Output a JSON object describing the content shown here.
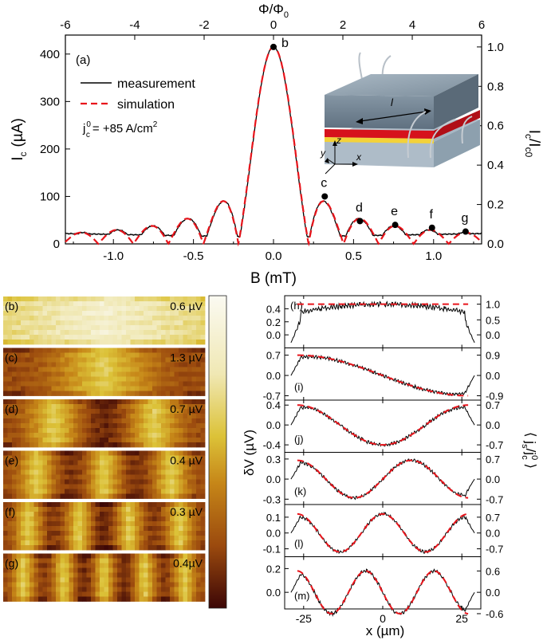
{
  "chart_data": [
    {
      "panel": "(a)",
      "type": "line",
      "xlabel": "B (mT)",
      "x_top_label": "Φ/Φ",
      "x_top_label_sub": "0",
      "ylabel": "I",
      "ylabel_sub": "c",
      "ylabel_unit": "(µA)",
      "y2label": "I",
      "y2label_sub1": "c",
      "y2label_sep": "/I",
      "y2label_sub2": "c0",
      "xlim": [
        -1.3,
        1.3
      ],
      "ylim": [
        0,
        440
      ],
      "x_ticks": [
        "-1.0",
        "-0.5",
        "0.0",
        "0.5",
        "1.0"
      ],
      "x_tick_values": [
        -1.0,
        -0.5,
        0.0,
        0.5,
        1.0
      ],
      "x_top_ticks": [
        "-6",
        "-4",
        "-2",
        "0",
        "2",
        "4",
        "6"
      ],
      "x_top_tick_values": [
        -6,
        -4,
        -2,
        0,
        2,
        4,
        6
      ],
      "y_ticks": [
        "0",
        "100",
        "200",
        "300",
        "400"
      ],
      "y_tick_values": [
        0,
        100,
        200,
        300,
        400
      ],
      "y2_ticks": [
        "0.0",
        "0.2",
        "0.4",
        "0.6",
        "0.8",
        "1.0"
      ],
      "y2_tick_values": [
        0.0,
        0.2,
        0.4,
        0.6,
        0.8,
        1.0
      ],
      "model": {
        "Ic0": 415,
        "B_per_flux": 0.2167,
        "floor": 14
      },
      "legend": [
        {
          "name": "measurement",
          "color": "#000000",
          "style": "solid"
        },
        {
          "name": "simulation",
          "color": "#e8141b",
          "style": "dashed"
        }
      ],
      "annotation": {
        "prefix": "j",
        "sup": "0",
        "sub": "c",
        "text": "= +85 A/cm",
        "power": "2"
      },
      "points": [
        {
          "label": "b",
          "B": 0.0,
          "Ic": 415
        },
        {
          "label": "c",
          "B": 0.32,
          "Ic": 100
        },
        {
          "label": "d",
          "B": 0.54,
          "Ic": 48
        },
        {
          "label": "e",
          "B": 0.76,
          "Ic": 40
        },
        {
          "label": "f",
          "B": 0.99,
          "Ic": 34
        },
        {
          "label": "g",
          "B": 1.2,
          "Ic": 26
        }
      ],
      "inset_labels": {
        "length": "l",
        "y": "y",
        "z": "z",
        "x": "x"
      }
    },
    {
      "panel": "(h)-(m)",
      "type": "line",
      "xlabel": "x (µm)",
      "ylabel": "δV (µV)",
      "y2label": "⟨ j",
      "y2label_sub": "s",
      "y2label_mid": "/j",
      "y2label_sup": "0",
      "y2label_sub2": "c",
      "y2label_end": " ⟩",
      "xlim": [
        -31,
        31
      ],
      "x_ticks": [
        "-25",
        "0",
        "25"
      ],
      "x_tick_values": [
        -25,
        0,
        25
      ],
      "series": [
        {
          "name": "measurement",
          "color": "#000000"
        },
        {
          "name": "simulation",
          "color": "#e8141b"
        }
      ],
      "panels": [
        {
          "label": "(h)",
          "n": 0,
          "ylim": [
            -0.2,
            0.6
          ],
          "y_ticks": [
            "0.4",
            "0.2",
            "0.0"
          ],
          "y_tick_values": [
            0.4,
            0.2,
            0.0
          ],
          "y2_ticks": [
            "1.0",
            "0.5",
            "0.0"
          ],
          "y2_tick_values": [
            0.47,
            0.23,
            0.0
          ],
          "amp": 0.47
        },
        {
          "label": "(i)",
          "n": 1,
          "ylim": [
            -0.85,
            0.95
          ],
          "y_ticks": [
            "0.7",
            "0.0",
            "-0.7"
          ],
          "y_tick_values": [
            0.7,
            0.0,
            -0.7
          ],
          "y2_ticks": [
            "0.9",
            "0.0",
            "-0.9"
          ],
          "y2_tick_values": [
            0.7,
            0.0,
            -0.7
          ],
          "amp": 0.7
        },
        {
          "label": "(j)",
          "n": 2,
          "ylim": [
            -0.55,
            0.5
          ],
          "y_ticks": [
            "0.4",
            "0.0",
            "-0.4"
          ],
          "y_tick_values": [
            0.4,
            0.0,
            -0.4
          ],
          "y2_ticks": [
            "0.7",
            "0.0",
            "-0.7"
          ],
          "y2_tick_values": [
            0.4,
            0.0,
            -0.4
          ],
          "amp": 0.4
        },
        {
          "label": "(k)",
          "n": 3,
          "ylim": [
            -0.38,
            0.4
          ],
          "y_ticks": [
            "0.3",
            "0.0",
            "-0.3"
          ],
          "y_tick_values": [
            0.3,
            0.0,
            -0.3
          ],
          "y2_ticks": [
            "0.7",
            "0.0",
            "-0.7"
          ],
          "y2_tick_values": [
            0.3,
            0.0,
            -0.3
          ],
          "amp": 0.28
        },
        {
          "label": "(l)",
          "n": 4,
          "ylim": [
            -0.15,
            0.18
          ],
          "y_ticks": [
            "0.1",
            "0.0",
            "-0.1"
          ],
          "y2_ticks": [
            "0.7",
            "0.0",
            "-0.7"
          ],
          "y_tick_values": [
            0.1,
            0.0,
            -0.1
          ],
          "y2_tick_values": [
            0.1,
            0.0,
            -0.1
          ],
          "amp": 0.12
        },
        {
          "label": "(m)",
          "n": 5,
          "ylim": [
            -0.14,
            0.3
          ],
          "y_ticks": [
            "0.2",
            "0.0"
          ],
          "y_tick_values": [
            0.2,
            0.0
          ],
          "y2_ticks": [
            "0.6",
            "0.0",
            "-0.6"
          ],
          "y2_tick_values": [
            0.18,
            0.0,
            -0.18
          ],
          "amp": 0.18
        }
      ]
    },
    {
      "panel": "(b)-(g)",
      "type": "heatmap",
      "images": [
        {
          "label": "(b)",
          "value": "0.6 µV",
          "n": 0
        },
        {
          "label": "(c)",
          "value": "1.3 µV",
          "n": 1
        },
        {
          "label": "(d)",
          "value": "0.7 µV",
          "n": 2
        },
        {
          "label": "(e)",
          "value": "0.4 µV",
          "n": 3
        },
        {
          "label": "(f)",
          "value": "0.3 µV",
          "n": 4
        },
        {
          "label": "(g)",
          "value": "0.4µV",
          "n": 5
        }
      ],
      "colorbar": [
        "#fbfaf2",
        "#f0e8b4",
        "#dcc238",
        "#c68618",
        "#9b4a0e",
        "#3c0606"
      ]
    }
  ]
}
